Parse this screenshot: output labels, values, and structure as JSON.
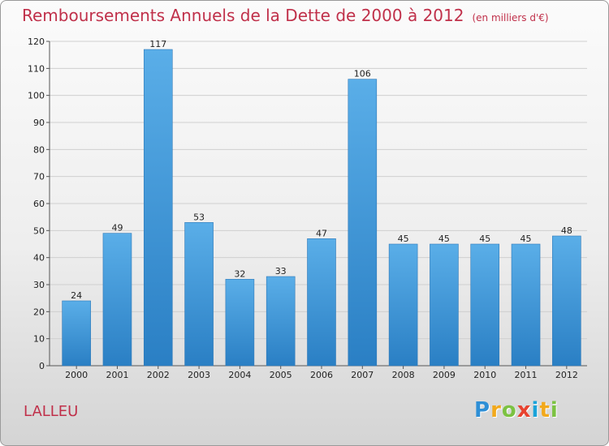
{
  "header": {
    "title": "Remboursements Annuels de la Dette de 2000 à 2012",
    "unit": "(en milliers d'€)"
  },
  "footer": {
    "commune": "LALLEU",
    "logo_letters": [
      "P",
      "r",
      "o",
      "x",
      "i",
      "t",
      "i"
    ],
    "logo_colors": [
      "#2e8fd6",
      "#f2a91c",
      "#7cc242",
      "#e8432f",
      "#1aa3d9",
      "#f2a91c",
      "#7cc242"
    ]
  },
  "chart_data": {
    "type": "bar",
    "categories": [
      "2000",
      "2001",
      "2002",
      "2003",
      "2004",
      "2005",
      "2006",
      "2007",
      "2008",
      "2009",
      "2010",
      "2011",
      "2012"
    ],
    "values": [
      24,
      49,
      117,
      53,
      32,
      33,
      47,
      106,
      45,
      45,
      45,
      45,
      48
    ],
    "ylim": [
      0,
      120
    ],
    "yticks": [
      0,
      10,
      20,
      30,
      40,
      50,
      60,
      70,
      80,
      90,
      100,
      110,
      120
    ],
    "grid": true,
    "bar_color_light": "#5aaee8",
    "bar_color_dark": "#2a7fc4"
  }
}
